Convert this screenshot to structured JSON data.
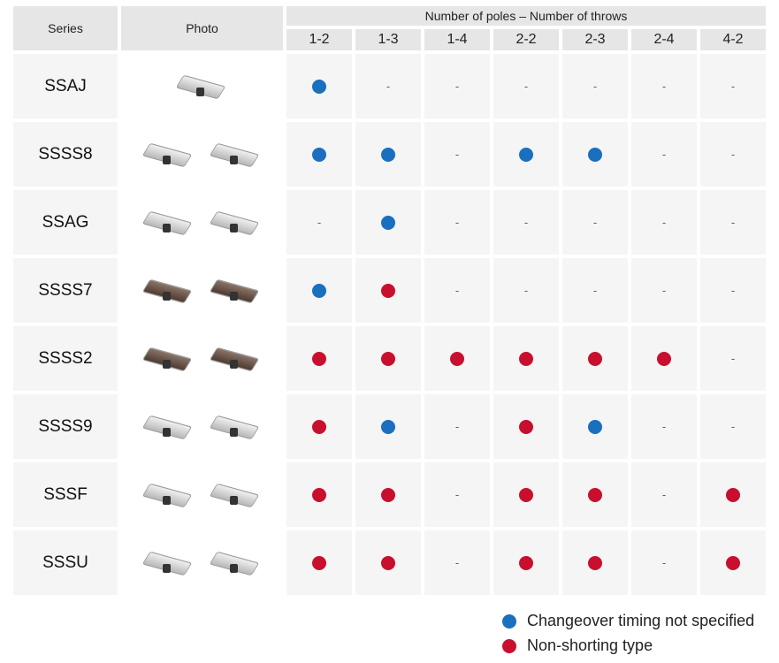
{
  "header": {
    "series": "Series",
    "photo": "Photo",
    "poles_throws": "Number of poles – Number of throws",
    "columns": [
      "1-2",
      "1-3",
      "1-4",
      "2-2",
      "2-3",
      "2-4",
      "4-2"
    ]
  },
  "colors": {
    "changeover": "#1a6fbf",
    "non_shorting": "#c8102e",
    "dash": "#1a6fbf"
  },
  "rows": [
    {
      "series": "SSAJ",
      "values": [
        "B",
        "-",
        "-",
        "-",
        "-",
        "-",
        "-"
      ],
      "photo_count": 1,
      "photo_style": "silver"
    },
    {
      "series": "SSSS8",
      "values": [
        "B",
        "B",
        "-",
        "B",
        "B",
        "-",
        "-"
      ],
      "photo_count": 2,
      "photo_style": "silver"
    },
    {
      "series": "SSAG",
      "values": [
        "-",
        "B",
        "-",
        "-",
        "-",
        "-",
        "-"
      ],
      "photo_count": 2,
      "photo_style": "silver"
    },
    {
      "series": "SSSS7",
      "values": [
        "B",
        "R",
        "-",
        "-",
        "-",
        "-",
        "-"
      ],
      "photo_count": 2,
      "photo_style": "brown"
    },
    {
      "series": "SSSS2",
      "values": [
        "R",
        "R",
        "R",
        "R",
        "R",
        "R",
        "-"
      ],
      "photo_count": 2,
      "photo_style": "brown"
    },
    {
      "series": "SSSS9",
      "values": [
        "R",
        "B",
        "-",
        "R",
        "B",
        "-",
        "-"
      ],
      "photo_count": 2,
      "photo_style": "silver"
    },
    {
      "series": "SSSF",
      "values": [
        "R",
        "R",
        "-",
        "R",
        "R",
        "-",
        "R"
      ],
      "photo_count": 2,
      "photo_style": "silver"
    },
    {
      "series": "SSSU",
      "values": [
        "R",
        "R",
        "-",
        "R",
        "R",
        "-",
        "R"
      ],
      "photo_count": 2,
      "photo_style": "silver"
    }
  ],
  "dash_text": "-",
  "legend": [
    {
      "marker": "B",
      "label": "Changeover timing not specified"
    },
    {
      "marker": "R",
      "label": "Non-shorting type"
    }
  ]
}
